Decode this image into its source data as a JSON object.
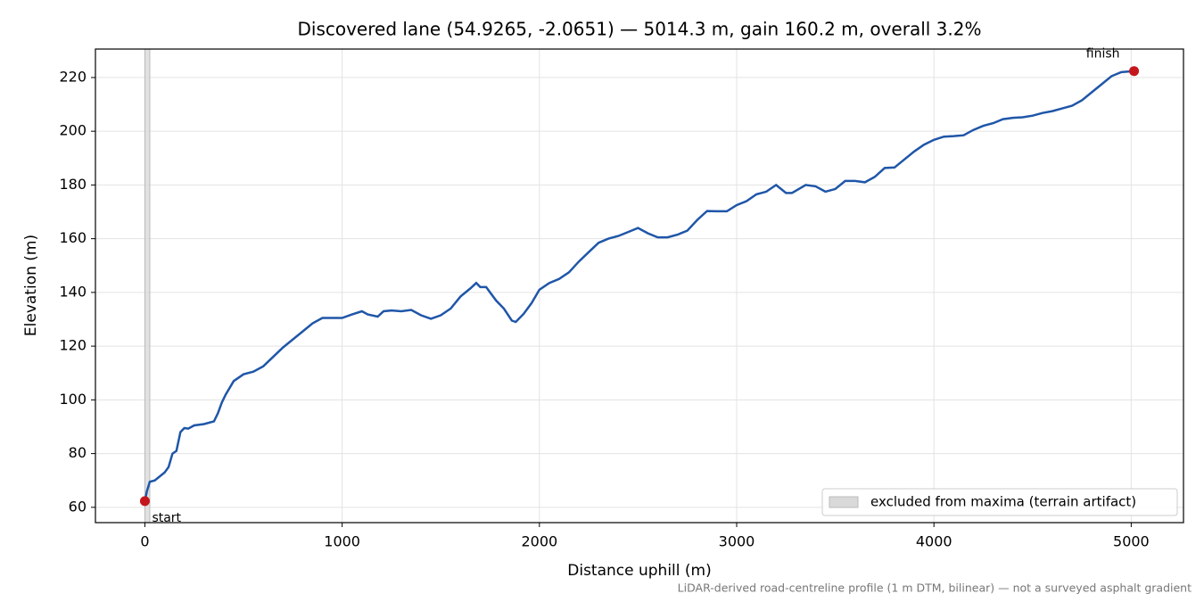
{
  "chart_data": {
    "type": "line",
    "title": "Discovered lane (54.9265, -2.0651) — 5014.3 m, gain 160.2 m, overall 3.2%",
    "xlabel": "Distance uphill (m)",
    "ylabel": "Elevation (m)",
    "footnote": "LiDAR-derived road-centreline profile (1 m DTM, bilinear) — not a surveyed asphalt gradient",
    "start_label": "start",
    "finish_label": "finish",
    "marker_color": "#c4161c",
    "excluded": {
      "xrange": [
        0,
        25
      ],
      "label": "excluded from maxima (terrain artifact)",
      "color": "#d9d9d9"
    },
    "legend": "lower right",
    "grid": true,
    "color": "#1f56a8",
    "xlim": [
      -250.7,
      5265
    ],
    "ylim": [
      54.3,
      230.6
    ],
    "xticks": [
      0,
      1000,
      2000,
      3000,
      4000,
      5000
    ],
    "yticks": [
      60,
      80,
      100,
      120,
      140,
      160,
      180,
      200,
      220
    ],
    "x": [
      0,
      10,
      25,
      50,
      100,
      120,
      140,
      160,
      180,
      200,
      220,
      250,
      300,
      350,
      370,
      390,
      410,
      450,
      500,
      550,
      600,
      650,
      700,
      750,
      800,
      850,
      900,
      950,
      1000,
      1050,
      1100,
      1130,
      1180,
      1210,
      1250,
      1300,
      1350,
      1400,
      1450,
      1500,
      1550,
      1600,
      1650,
      1680,
      1700,
      1730,
      1780,
      1820,
      1860,
      1880,
      1920,
      1960,
      2000,
      2050,
      2100,
      2150,
      2200,
      2250,
      2300,
      2350,
      2400,
      2450,
      2500,
      2550,
      2600,
      2650,
      2700,
      2750,
      2800,
      2850,
      2900,
      2950,
      3000,
      3050,
      3100,
      3150,
      3200,
      3250,
      3280,
      3350,
      3400,
      3450,
      3500,
      3550,
      3600,
      3650,
      3700,
      3750,
      3800,
      3850,
      3900,
      3950,
      4000,
      4050,
      4100,
      4150,
      4200,
      4250,
      4300,
      4350,
      4400,
      4450,
      4500,
      4550,
      4600,
      4650,
      4700,
      4750,
      4800,
      4850,
      4900,
      4950,
      5014.3
    ],
    "values": [
      62.3,
      66,
      69.5,
      70,
      73,
      75,
      80,
      81,
      88,
      89.5,
      89.3,
      90.5,
      91,
      92,
      95,
      99,
      102,
      107,
      109.5,
      110.5,
      112.5,
      116,
      119.5,
      122.5,
      125.5,
      128.5,
      130.5,
      130.5,
      130.5,
      131.8,
      133,
      131.8,
      131,
      133,
      133.3,
      133,
      133.5,
      131.5,
      130.2,
      131.5,
      134,
      138.5,
      141.5,
      143.5,
      142,
      142,
      137,
      134,
      129.5,
      129,
      132,
      136,
      141,
      143.5,
      145,
      147.5,
      151.5,
      155,
      158.5,
      160,
      161,
      162.5,
      164,
      162,
      160.5,
      160.5,
      161.5,
      163,
      167,
      170.3,
      170.2,
      170.2,
      172.5,
      174,
      176.5,
      177.5,
      180,
      177,
      177,
      180,
      179.5,
      177.5,
      178.5,
      181.5,
      181.5,
      181,
      183,
      186.3,
      186.5,
      189.5,
      192.5,
      195,
      196.8,
      198,
      198.2,
      198.5,
      200.5,
      202,
      203,
      204.5,
      205,
      205.2,
      205.8,
      206.8,
      207.5,
      208.5,
      209.5,
      211.5,
      214.5,
      217.5,
      220.5,
      222,
      222.4
    ]
  }
}
